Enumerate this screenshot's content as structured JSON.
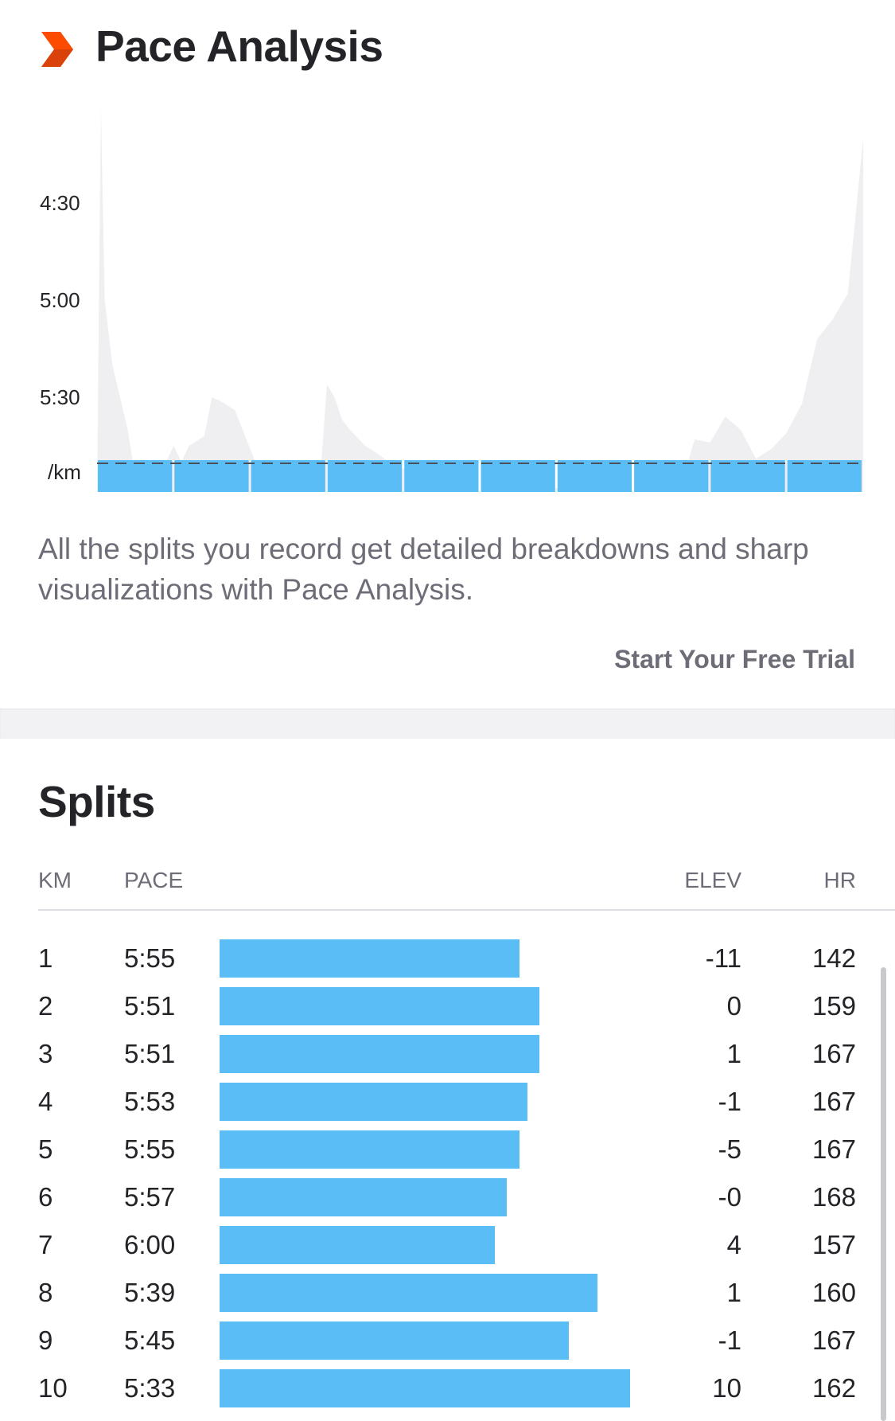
{
  "pace_analysis": {
    "title": "Pace Analysis",
    "description": "All the splits you record get detailed breakdowns and sharp visualizations with Pace Analysis.",
    "cta": "Start Your Free Trial",
    "colors": {
      "accent": "#fc4c02",
      "bar": "#5bbdf5",
      "profile": "#efeff1"
    }
  },
  "chart_data": {
    "type": "area",
    "y_unit_label": "/km",
    "y_ticks": [
      "4:30",
      "5:00",
      "5:30"
    ],
    "ylim_seconds_per_km": [
      250,
      375
    ],
    "x_unit": "km",
    "xlim_km": [
      0,
      10
    ],
    "average_pace_line": "5:50",
    "series": [
      {
        "x": [
          0,
          0.05,
          0.1,
          0.2,
          0.3,
          0.4,
          0.5,
          0.6,
          0.8,
          1.0,
          1.1,
          1.2,
          1.4,
          1.5,
          1.6,
          1.8,
          2.0,
          2.2,
          2.4,
          2.6,
          2.8,
          2.9,
          3.0,
          3.1,
          3.2,
          3.3,
          3.5,
          3.7,
          3.9,
          4.0,
          4.2,
          4.4,
          4.6,
          4.8,
          5.0,
          5.2,
          5.4,
          5.6,
          5.8,
          6.0,
          6.2,
          6.4,
          6.6,
          6.8,
          7.0,
          7.2,
          7.4,
          7.6,
          7.8,
          8.0,
          8.2,
          8.4,
          8.6,
          8.8,
          9.0,
          9.2,
          9.4,
          9.6,
          9.8,
          10.0
        ],
        "y_pace_seconds": [
          375,
          240,
          300,
          320,
          330,
          340,
          355,
          350,
          355,
          345,
          350,
          345,
          342,
          330,
          331,
          334,
          346,
          358,
          360,
          374,
          372,
          360,
          326,
          330,
          337,
          340,
          345,
          348,
          352,
          352,
          355,
          360,
          365,
          375,
          368,
          375,
          374,
          362,
          369,
          358,
          370,
          369,
          372,
          352,
          365,
          374,
          356,
          360,
          343,
          344,
          336,
          340,
          349,
          346,
          341,
          332,
          312,
          306,
          298,
          250
        ]
      }
    ],
    "bars_km_pace": [
      "5:55",
      "5:51",
      "5:51",
      "5:53",
      "5:55",
      "5:57",
      "6:00",
      "5:39",
      "5:45",
      "5:33"
    ]
  },
  "splits": {
    "title": "Splits",
    "headers": {
      "km": "KM",
      "pace": "PACE",
      "elev": "ELEV",
      "hr": "HR"
    },
    "rows": [
      {
        "km": "1",
        "pace": "5:55",
        "elev": "-11",
        "hr": "142",
        "bar_fraction": 0.73
      },
      {
        "km": "2",
        "pace": "5:51",
        "elev": "0",
        "hr": "159",
        "bar_fraction": 0.78
      },
      {
        "km": "3",
        "pace": "5:51",
        "elev": "1",
        "hr": "167",
        "bar_fraction": 0.78
      },
      {
        "km": "4",
        "pace": "5:53",
        "elev": "-1",
        "hr": "167",
        "bar_fraction": 0.75
      },
      {
        "km": "5",
        "pace": "5:55",
        "elev": "-5",
        "hr": "167",
        "bar_fraction": 0.73
      },
      {
        "km": "6",
        "pace": "5:57",
        "elev": "-0",
        "hr": "168",
        "bar_fraction": 0.7
      },
      {
        "km": "7",
        "pace": "6:00",
        "elev": "4",
        "hr": "157",
        "bar_fraction": 0.67
      },
      {
        "km": "8",
        "pace": "5:39",
        "elev": "1",
        "hr": "160",
        "bar_fraction": 0.92
      },
      {
        "km": "9",
        "pace": "5:45",
        "elev": "-1",
        "hr": "167",
        "bar_fraction": 0.85
      },
      {
        "km": "10",
        "pace": "5:33",
        "elev": "10",
        "hr": "162",
        "bar_fraction": 1.0
      }
    ]
  }
}
